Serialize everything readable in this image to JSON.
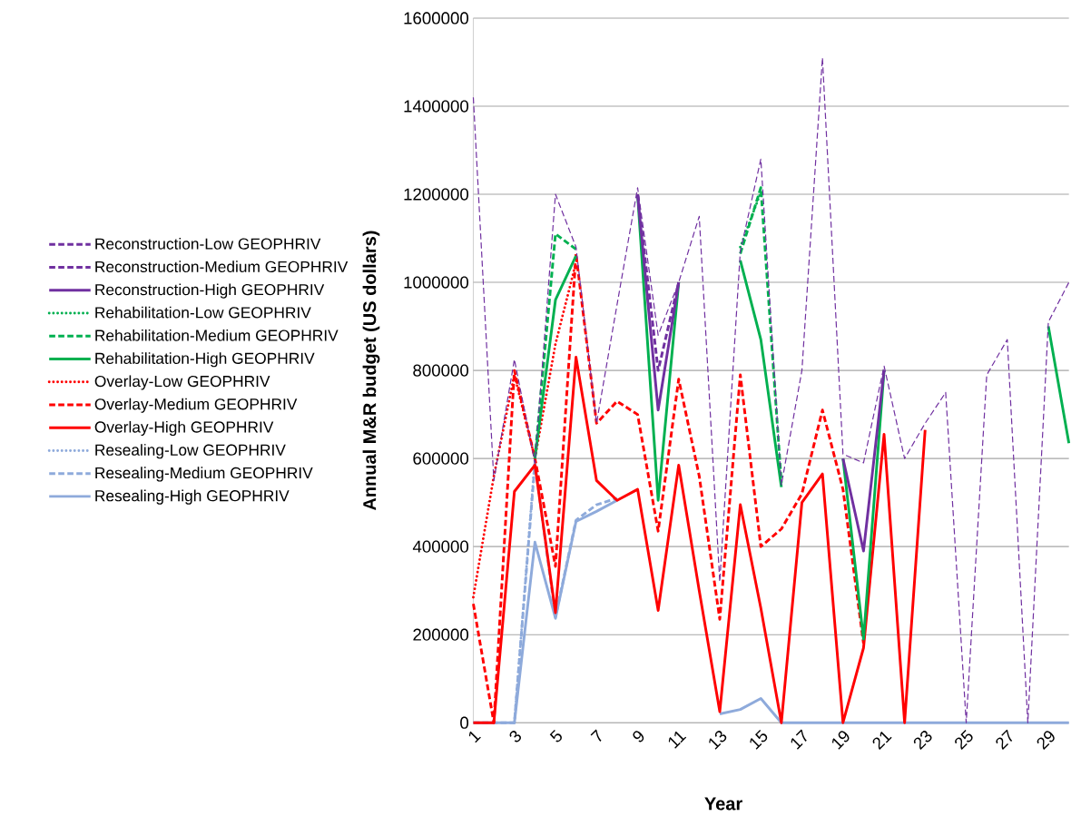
{
  "chart_data": {
    "type": "line",
    "xlabel": "Year",
    "ylabel": "Annual M&R budget (US dollars)",
    "x": [
      1,
      2,
      3,
      4,
      5,
      6,
      7,
      8,
      9,
      10,
      11,
      12,
      13,
      14,
      15,
      16,
      17,
      18,
      19,
      20,
      21,
      22,
      23,
      24,
      25,
      26,
      27,
      28,
      29,
      30
    ],
    "xlim": [
      1,
      30
    ],
    "xticks": [
      1,
      3,
      5,
      7,
      9,
      11,
      13,
      15,
      17,
      19,
      21,
      23,
      25,
      27,
      29
    ],
    "ylim": [
      0,
      1600000
    ],
    "yticks": [
      0,
      200000,
      400000,
      600000,
      800000,
      1000000,
      1200000,
      1400000,
      1600000
    ],
    "grid": "y",
    "legend": "left",
    "marker": "none",
    "series": [
      {
        "name": "Reconstruction-Low GEOPHRIV",
        "color": "#7030a0",
        "line_style": "dashed",
        "values": [
          1420000,
          550000,
          825000,
          590000,
          1200000,
          1080000,
          680000,
          950000,
          1215000,
          880000,
          1000000,
          1150000,
          320000,
          1070000,
          1280000,
          540000,
          800000,
          1510000,
          610000,
          590000,
          810000,
          600000,
          680000,
          750000,
          0,
          790000,
          870000,
          0,
          910000,
          1000000
        ]
      },
      {
        "name": "Reconstruction-Medium GEOPHRIV",
        "color": "#7030a0",
        "line_style": "dashed",
        "values": [
          null,
          null,
          null,
          null,
          null,
          null,
          null,
          null,
          1200000,
          800000,
          1000000,
          null,
          null,
          null,
          null,
          null,
          null,
          null,
          null,
          null,
          null,
          null,
          null,
          null,
          null,
          null,
          null,
          null,
          null,
          null
        ]
      },
      {
        "name": "Reconstruction-High GEOPHRIV",
        "color": "#7030a0",
        "line_style": "solid",
        "values": [
          null,
          null,
          null,
          null,
          null,
          null,
          null,
          null,
          1200000,
          710000,
          1000000,
          null,
          null,
          null,
          null,
          null,
          null,
          null,
          600000,
          390000,
          800000,
          null,
          null,
          null,
          null,
          null,
          null,
          null,
          null,
          null
        ]
      },
      {
        "name": "Rehabilitation-Low GEOPHRIV",
        "color": "#00b050",
        "line_style": "dotted",
        "values": [
          null,
          null,
          null,
          null,
          null,
          null,
          null,
          null,
          null,
          null,
          null,
          null,
          null,
          1080000,
          1205000,
          null,
          null,
          null,
          null,
          null,
          null,
          null,
          null,
          null,
          null,
          null,
          null,
          null,
          null,
          null
        ]
      },
      {
        "name": "Rehabilitation-Medium GEOPHRIV",
        "color": "#00b050",
        "line_style": "dashed",
        "values": [
          null,
          null,
          null,
          600000,
          1110000,
          1075000,
          null,
          null,
          null,
          null,
          null,
          null,
          null,
          1065000,
          1215000,
          545000,
          null,
          null,
          null,
          null,
          null,
          null,
          null,
          null,
          null,
          null,
          null,
          null,
          null,
          null
        ]
      },
      {
        "name": "Rehabilitation-High GEOPHRIV",
        "color": "#00b050",
        "line_style": "solid",
        "values": [
          null,
          null,
          null,
          600000,
          960000,
          1060000,
          null,
          null,
          1200000,
          505000,
          1000000,
          null,
          null,
          1050000,
          870000,
          535000,
          null,
          null,
          600000,
          190000,
          800000,
          null,
          null,
          null,
          null,
          null,
          null,
          null,
          900000,
          635000
        ]
      },
      {
        "name": "Overlay-Low GEOPHRIV",
        "color": "#ff0000",
        "line_style": "dotted",
        "values": [
          285000,
          560000,
          790000,
          600000,
          860000,
          1045000,
          null,
          null,
          null,
          null,
          null,
          null,
          null,
          null,
          null,
          null,
          null,
          null,
          null,
          null,
          null,
          null,
          null,
          null,
          null,
          null,
          null,
          null,
          null,
          null
        ]
      },
      {
        "name": "Overlay-Medium GEOPHRIV",
        "color": "#ff0000",
        "line_style": "dashed",
        "values": [
          270000,
          0,
          800000,
          600000,
          355000,
          1065000,
          680000,
          730000,
          700000,
          435000,
          780000,
          560000,
          235000,
          790000,
          400000,
          440000,
          520000,
          710000,
          530000,
          180000,
          null,
          null,
          null,
          null,
          null,
          null,
          null,
          null,
          null,
          null
        ]
      },
      {
        "name": "Overlay-High GEOPHRIV",
        "color": "#ff0000",
        "line_style": "solid",
        "values": [
          0,
          0,
          525000,
          585000,
          250000,
          830000,
          550000,
          505000,
          530000,
          255000,
          585000,
          300000,
          25000,
          495000,
          260000,
          0,
          500000,
          565000,
          0,
          170000,
          655000,
          0,
          665000,
          null,
          null,
          null,
          null,
          null,
          null,
          null
        ]
      },
      {
        "name": "Resealing-Low GEOPHRIV",
        "color": "#8eaadb",
        "line_style": "dotted",
        "values": [
          null,
          null,
          0,
          600000,
          null,
          null,
          null,
          null,
          null,
          null,
          null,
          null,
          null,
          null,
          null,
          null,
          null,
          null,
          null,
          null,
          null,
          null,
          null,
          null,
          null,
          null,
          null,
          null,
          null,
          null
        ]
      },
      {
        "name": "Resealing-Medium GEOPHRIV",
        "color": "#8eaadb",
        "line_style": "dashed",
        "values": [
          0,
          0,
          0,
          590000,
          240000,
          460000,
          495000,
          510000,
          null,
          null,
          null,
          null,
          null,
          null,
          null,
          null,
          null,
          null,
          null,
          null,
          null,
          null,
          null,
          null,
          null,
          null,
          null,
          null,
          null,
          null
        ]
      },
      {
        "name": "Resealing-High GEOPHRIV",
        "color": "#8eaadb",
        "line_style": "solid",
        "values": [
          0,
          0,
          0,
          410000,
          237000,
          457000,
          480000,
          505000,
          null,
          null,
          null,
          null,
          20000,
          30000,
          55000,
          0,
          0,
          0,
          0,
          0,
          0,
          0,
          0,
          0,
          0,
          0,
          0,
          0,
          0,
          0
        ]
      }
    ]
  }
}
